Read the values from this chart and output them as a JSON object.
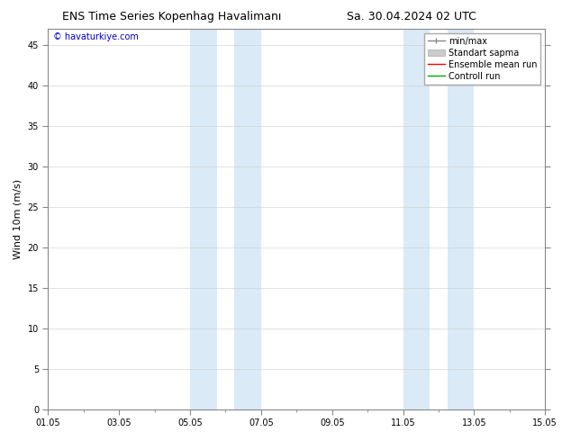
{
  "title_left": "ENS Time Series Kopenhag Havalimanı",
  "title_right": "Sa. 30.04.2024 02 UTC",
  "ylabel": "Wind 10m (m/s)",
  "ylim": [
    0,
    47
  ],
  "yticks": [
    0,
    5,
    10,
    15,
    20,
    25,
    30,
    35,
    40,
    45
  ],
  "xlim": [
    0,
    14
  ],
  "xtick_labels": [
    "01.05",
    "03.05",
    "05.05",
    "07.05",
    "09.05",
    "11.05",
    "13.05",
    "15.05"
  ],
  "xtick_positions": [
    0,
    2,
    4,
    6,
    8,
    10,
    12,
    14
  ],
  "shade_bands": [
    {
      "x_start": 4.0,
      "x_end": 4.75
    },
    {
      "x_start": 5.25,
      "x_end": 6.0
    },
    {
      "x_start": 10.0,
      "x_end": 10.75
    },
    {
      "x_start": 11.25,
      "x_end": 12.0
    }
  ],
  "shade_color": "#daeaf7",
  "watermark_text": "© havaturkiye.com",
  "watermark_color": "#0000cc",
  "legend_entries": [
    {
      "label": "min/max",
      "color": "#888888",
      "lw": 1.0,
      "linestyle": "-"
    },
    {
      "label": "Standart sapma",
      "color": "#cccccc",
      "patch": true
    },
    {
      "label": "Ensemble mean run",
      "color": "#ff0000",
      "lw": 1.0,
      "linestyle": "-"
    },
    {
      "label": "Controll run",
      "color": "#00aa00",
      "lw": 1.0,
      "linestyle": "-"
    }
  ],
  "bg_color": "#ffffff",
  "plot_bg_color": "#ffffff",
  "grid_color": "#cccccc",
  "title_fontsize": 9,
  "tick_fontsize": 7,
  "ylabel_fontsize": 8,
  "legend_fontsize": 7,
  "watermark_fontsize": 7
}
